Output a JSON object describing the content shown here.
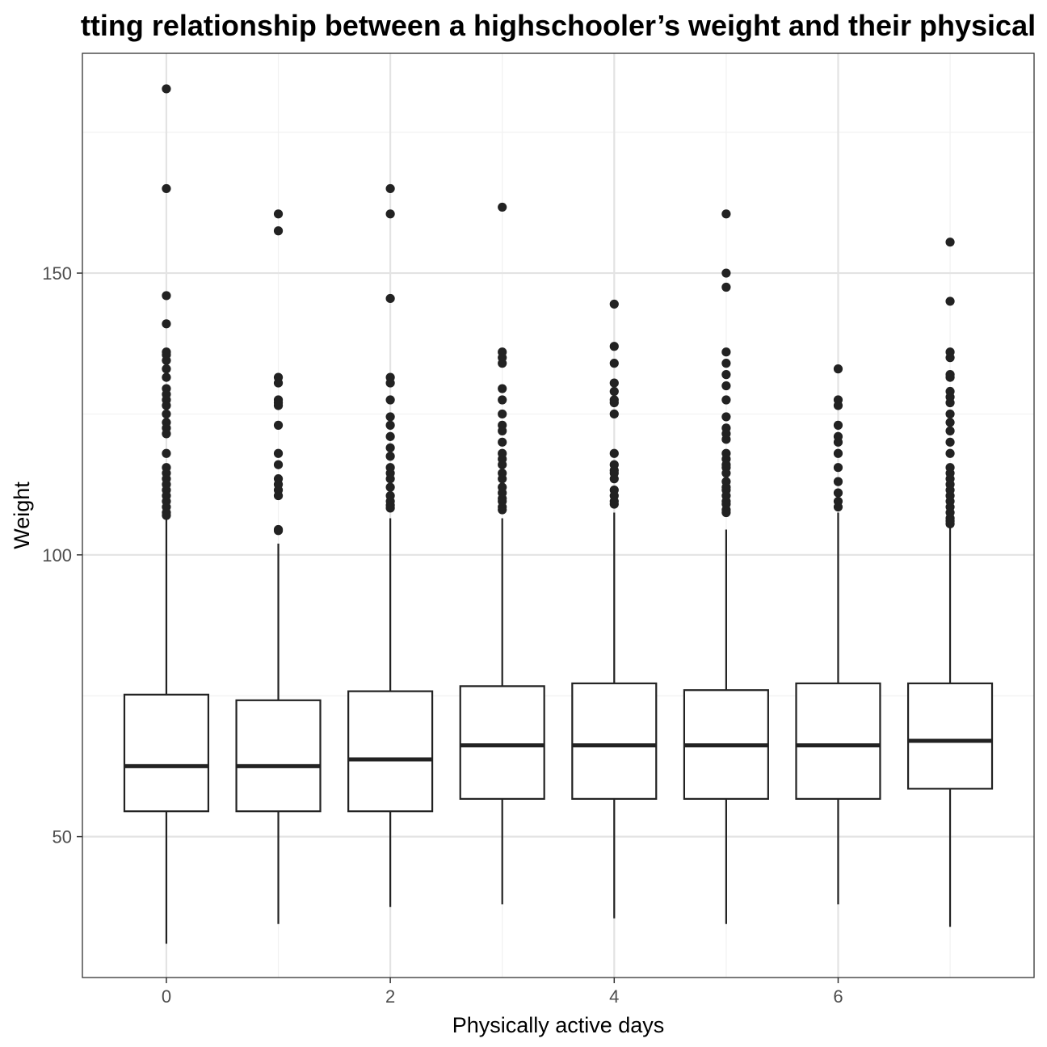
{
  "chart_data": {
    "type": "boxplot",
    "title": "tting relationship between a highschooler’s weight and their physical",
    "xlabel": "Physically active days",
    "ylabel": "Weight",
    "x_ticks": [
      0,
      2,
      4,
      6
    ],
    "y_ticks": [
      50,
      100,
      150
    ],
    "xlim": [
      -0.75,
      7.75
    ],
    "ylim": [
      25,
      189
    ],
    "grid": true,
    "colors": {
      "box_stroke": "#222222",
      "box_fill": "#ffffff",
      "grid_major": "#e3e3e3",
      "grid_minor": "#f1f1f1",
      "panel_border": "#333333",
      "point": "#222222"
    },
    "boxes": [
      {
        "x": 0,
        "whisker_low": 31,
        "q1": 54.5,
        "median": 62.5,
        "q3": 75.2,
        "whisker_high": 106.5,
        "outliers": [
          182.7,
          165,
          146,
          141,
          136,
          135.5,
          134.5,
          133,
          131.5,
          129.5,
          128.5,
          127.5,
          126.5,
          125,
          123.5,
          122.5,
          121.5,
          118,
          115.5,
          114.5,
          113.5,
          112.5,
          111.5,
          110.5,
          109.5,
          108.5,
          107.5,
          107
        ]
      },
      {
        "x": 1,
        "whisker_low": 34.5,
        "q1": 54.5,
        "median": 62.5,
        "q3": 74.2,
        "whisker_high": 102,
        "outliers": [
          160.5,
          157.5,
          131.5,
          130.5,
          127.5,
          127,
          126.5,
          123,
          118,
          116,
          113.5,
          112.5,
          111.5,
          110.5,
          104.5,
          104.3
        ]
      },
      {
        "x": 2,
        "whisker_low": 37.5,
        "q1": 54.5,
        "median": 63.7,
        "q3": 75.8,
        "whisker_high": 106.5,
        "outliers": [
          165,
          160.5,
          145.5,
          131.5,
          130.5,
          127.5,
          124.5,
          123,
          121,
          119,
          117.5,
          115.5,
          114.5,
          113.5,
          112,
          110.5,
          109.5,
          108.8,
          108.3
        ]
      },
      {
        "x": 3,
        "whisker_low": 38,
        "q1": 56.7,
        "median": 66.2,
        "q3": 76.7,
        "whisker_high": 106.5,
        "outliers": [
          161.7,
          136,
          135,
          134,
          129.5,
          127.5,
          125,
          123,
          122,
          120,
          118,
          117,
          116,
          114.5,
          113.5,
          112,
          111,
          110,
          109.5,
          108.5,
          108
        ]
      },
      {
        "x": 4,
        "whisker_low": 35.5,
        "q1": 56.7,
        "median": 66.2,
        "q3": 77.2,
        "whisker_high": 107.5,
        "outliers": [
          144.5,
          137,
          134,
          130.5,
          129,
          127.5,
          127,
          125,
          118,
          116,
          115,
          114.5,
          113.5,
          111.5,
          110.5,
          109.5,
          109
        ]
      },
      {
        "x": 5,
        "whisker_low": 34.5,
        "q1": 56.7,
        "median": 66.2,
        "q3": 76,
        "whisker_high": 104.5,
        "outliers": [
          160.5,
          150,
          147.5,
          136,
          134,
          132,
          130,
          127.5,
          124.5,
          122.5,
          121.5,
          120.5,
          118,
          117,
          116,
          115.5,
          114.5,
          113,
          112,
          111.5,
          110.5,
          109.5,
          109,
          108,
          107.5
        ]
      },
      {
        "x": 6,
        "whisker_low": 38,
        "q1": 56.7,
        "median": 66.2,
        "q3": 77.2,
        "whisker_high": 107.5,
        "outliers": [
          133,
          127.5,
          126.5,
          123,
          121,
          120,
          118,
          115.5,
          113,
          111,
          109.5,
          108.5
        ]
      },
      {
        "x": 7,
        "whisker_low": 34,
        "q1": 58.5,
        "median": 67,
        "q3": 77.2,
        "whisker_high": 105,
        "outliers": [
          155.5,
          145,
          136,
          135,
          132,
          131.5,
          129,
          128,
          127,
          125,
          123.5,
          122,
          120,
          118,
          115.5,
          114.5,
          113.5,
          112.5,
          111.5,
          110.5,
          109.5,
          108.5,
          107.5,
          106.5,
          106,
          105.5
        ]
      }
    ]
  }
}
